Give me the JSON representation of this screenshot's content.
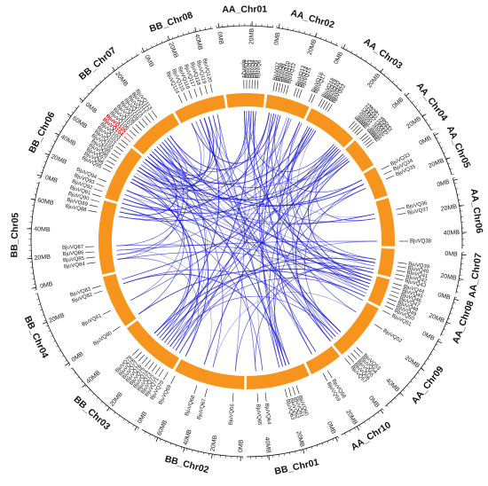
{
  "colors": {
    "chromosome": "#f7941d",
    "link": "#1414d2",
    "axis": "#111111",
    "highlight": "#e00000"
  },
  "chromosomes": [
    {
      "name": "AA_Chr01",
      "start": -8.0,
      "end": 7.0,
      "ticks": [
        "0MB",
        "20MB"
      ]
    },
    {
      "name": "AA_Chr02",
      "start": 8.0,
      "end": 25.0,
      "ticks": [
        "0MB",
        "20MB"
      ]
    },
    {
      "name": "AA_Chr03",
      "start": 26.0,
      "end": 46.0,
      "ticks": [
        "0MB",
        "20MB"
      ]
    },
    {
      "name": "AA_Chr04",
      "start": 47.0,
      "end": 59.0,
      "ticks": [
        "0MB",
        "20MB"
      ]
    },
    {
      "name": "AA_Chr05",
      "start": 60.0,
      "end": 72.0,
      "ticks": [
        "0MB",
        "20MB"
      ]
    },
    {
      "name": "AA_Chr06",
      "start": 73.0,
      "end": 92.0,
      "ticks": [
        "0MB",
        "20MB",
        "40MB"
      ]
    },
    {
      "name": "AA_Chr07",
      "start": 93.0,
      "end": 104.0,
      "ticks": [
        "0MB",
        "20MB"
      ]
    },
    {
      "name": "AA_Chr08",
      "start": 105.0,
      "end": 116.0,
      "ticks": [
        "0MB",
        "20MB"
      ]
    },
    {
      "name": "AA_Chr09",
      "start": 117.0,
      "end": 140.0,
      "ticks": [
        "0MB",
        "20MB",
        "40MB"
      ]
    },
    {
      "name": "AA_Chr10",
      "start": 141.0,
      "end": 154.0,
      "ticks": [
        "0MB",
        "20MB"
      ]
    },
    {
      "name": "BB_Chr01",
      "start": 155.0,
      "end": 180.0,
      "ticks": [
        "0MB",
        "20MB",
        "40MB"
      ]
    },
    {
      "name": "BB_Chr02",
      "start": 181.0,
      "end": 209.0,
      "ticks": [
        "0MB",
        "20MB",
        "40MB",
        "60MB"
      ]
    },
    {
      "name": "BB_Chr03",
      "start": 210.0,
      "end": 234.0,
      "ticks": [
        "0MB",
        "20MB",
        "40MB"
      ]
    },
    {
      "name": "BB_Chr04",
      "start": 235.0,
      "end": 256.0,
      "ticks": [
        "0MB",
        "20MB"
      ]
    },
    {
      "name": "BB_Chr05",
      "start": 257.0,
      "end": 286.0,
      "ticks": [
        "0MB",
        "20MB",
        "40MB",
        "60MB"
      ]
    },
    {
      "name": "BB_Chr06",
      "start": 287.0,
      "end": 309.0,
      "ticks": [
        "0MB",
        "20MB",
        "40MB",
        "60MB"
      ]
    },
    {
      "name": "BB_Chr07",
      "start": 310.0,
      "end": 330.0,
      "ticks": [
        "0MB",
        "20MB"
      ]
    },
    {
      "name": "BB_Chr08",
      "start": 331.0,
      "end": 351.0,
      "ticks": [
        "0MB",
        "20MB",
        "40MB"
      ]
    }
  ],
  "genes": [
    {
      "id": "BjuVQ1",
      "angle": -1.0
    },
    {
      "id": "BjuVQ2",
      "angle": 0.0
    },
    {
      "id": "BjuVQ3",
      "angle": 1.0
    },
    {
      "id": "BjuVQ4",
      "angle": 2.0
    },
    {
      "id": "BjuVQ5",
      "angle": 3.0
    },
    {
      "id": "BjuVQ6",
      "angle": 4.0
    },
    {
      "id": "BjuVQ7",
      "angle": 10.0
    },
    {
      "id": "BjuVQ8",
      "angle": 11.0
    },
    {
      "id": "BjuVQ9",
      "angle": 12.0
    },
    {
      "id": "BjuVQ10",
      "angle": 13.0
    },
    {
      "id": "BjuVQ11",
      "angle": 14.0
    },
    {
      "id": "BjuVQ12",
      "angle": 15.0
    },
    {
      "id": "BjuVQ13",
      "angle": 18.0
    },
    {
      "id": "BjuVQ14",
      "angle": 19.0
    },
    {
      "id": "BjuVQ15",
      "angle": 20.0
    },
    {
      "id": "BjuVQ16",
      "angle": 24.0
    },
    {
      "id": "BjuVQ17",
      "angle": 25.0
    },
    {
      "id": "BjuVQ18",
      "angle": 28.0
    },
    {
      "id": "BjuVQ19",
      "angle": 29.0
    },
    {
      "id": "BjuVQ20",
      "angle": 30.0
    },
    {
      "id": "BjuVQ21",
      "angle": 31.0
    },
    {
      "id": "BjuVQ22",
      "angle": 32.0
    },
    {
      "id": "BjuVQ23",
      "angle": 42.0
    },
    {
      "id": "BjuVQ24",
      "angle": 43.0
    },
    {
      "id": "BjuVQ25",
      "angle": 44.0
    },
    {
      "id": "BjuVQ26",
      "angle": 45.0
    },
    {
      "id": "BjuVQ27",
      "angle": 46.0
    },
    {
      "id": "BjuVQ28",
      "angle": 48.0
    },
    {
      "id": "BjuVQ29",
      "angle": 49.0
    },
    {
      "id": "BjuVQ30",
      "angle": 50.0
    },
    {
      "id": "BjuVQ31",
      "angle": 51.0
    },
    {
      "id": "BjuVQ32",
      "angle": 52.0
    },
    {
      "id": "BjuVQ33",
      "angle": 62.0
    },
    {
      "id": "BjuVQ34",
      "angle": 64.0
    },
    {
      "id": "BjuVQ35",
      "angle": 66.0
    },
    {
      "id": "BjuVQ36",
      "angle": 78.0
    },
    {
      "id": "BjuVQ37",
      "angle": 80.0
    },
    {
      "id": "BjuVQ38",
      "angle": 90.0
    },
    {
      "id": "BjuVQ39",
      "angle": 98.0
    },
    {
      "id": "BjuVQ40",
      "angle": 99.5
    },
    {
      "id": "BjuVQ41",
      "angle": 101.0
    },
    {
      "id": "BjuVQ42",
      "angle": 102.5
    },
    {
      "id": "BjuVQ43",
      "angle": 104.0
    },
    {
      "id": "BjuVQ44",
      "angle": 106.0
    },
    {
      "id": "BjuVQ45",
      "angle": 107.5
    },
    {
      "id": "BjuVQ46",
      "angle": 109.0
    },
    {
      "id": "BjuVQ47",
      "angle": 110.5
    },
    {
      "id": "BjuVQ48",
      "angle": 112.0
    },
    {
      "id": "BjuVQ49",
      "angle": 113.5
    },
    {
      "id": "BjuVQ50",
      "angle": 115.0
    },
    {
      "id": "BjuVQ51",
      "angle": 117.0
    },
    {
      "id": "BjuVQ52",
      "angle": 123.0
    },
    {
      "id": "BjuVQ53",
      "angle": 134.0
    },
    {
      "id": "BjuVQ54",
      "angle": 135.5
    },
    {
      "id": "BjuVQ55",
      "angle": 137.0
    },
    {
      "id": "BjuVQ56",
      "angle": 138.5
    },
    {
      "id": "BjuVQ57",
      "angle": 140.0
    },
    {
      "id": "BjuVQ58",
      "angle": 148.0
    },
    {
      "id": "BjuVQ59",
      "angle": 150.0
    },
    {
      "id": "BjuVQ60",
      "angle": 161.0
    },
    {
      "id": "BjuVQ61",
      "angle": 162.5
    },
    {
      "id": "BjuVQ62",
      "angle": 164.0
    },
    {
      "id": "BjuVQ63",
      "angle": 165.5
    },
    {
      "id": "BjuVQ64",
      "angle": 173.0
    },
    {
      "id": "BjuVQ65",
      "angle": 176.0
    },
    {
      "id": "BjuVQ66",
      "angle": 185.0
    },
    {
      "id": "BjuVQ67",
      "angle": 195.0
    },
    {
      "id": "BjuVQ68",
      "angle": 199.0
    },
    {
      "id": "BjuVQ69",
      "angle": 208.0
    },
    {
      "id": "BjuVQ70",
      "angle": 211.0
    },
    {
      "id": "BjuVQ71",
      "angle": 213.0
    },
    {
      "id": "BjuVQ72",
      "angle": 214.5
    },
    {
      "id": "BjuVQ73",
      "angle": 216.0
    },
    {
      "id": "BjuVQ74",
      "angle": 217.5
    },
    {
      "id": "BjuVQ75",
      "angle": 219.0
    },
    {
      "id": "BjuVQ76",
      "angle": 220.5
    },
    {
      "id": "BjuVQ77",
      "angle": 222.0
    },
    {
      "id": "BjuVQ78",
      "angle": 223.5
    },
    {
      "id": "BjuVQ79",
      "angle": 225.0
    },
    {
      "id": "BjuVQ80",
      "angle": 236.0
    },
    {
      "id": "BjuVQ81",
      "angle": 243.0
    },
    {
      "id": "BjuVQ82",
      "angle": 251.0
    },
    {
      "id": "BjuVQ83",
      "angle": 253.0
    },
    {
      "id": "BjuVQ84",
      "angle": 262.0
    },
    {
      "id": "BjuVQ85",
      "angle": 264.0
    },
    {
      "id": "BjuVQ86",
      "angle": 266.0
    },
    {
      "id": "BjuVQ87",
      "angle": 268.0
    },
    {
      "id": "BjuVQ88",
      "angle": 281.0
    },
    {
      "id": "BjuVQ89",
      "angle": 283.0
    },
    {
      "id": "BjuVQ90",
      "angle": 285.0
    },
    {
      "id": "BjuVQ91",
      "angle": 287.0
    },
    {
      "id": "BjuVQ92",
      "angle": 289.0
    },
    {
      "id": "BjuVQ93",
      "angle": 291.0
    },
    {
      "id": "BjuVQ94",
      "angle": 293.0
    },
    {
      "id": "BjuVQ95",
      "angle": 297.0
    },
    {
      "id": "BjuVQ96",
      "angle": 298.5
    },
    {
      "id": "BjuVQ97",
      "angle": 300.0
    },
    {
      "id": "BjuVQ98",
      "angle": 301.5
    },
    {
      "id": "BjuVQ99",
      "angle": 303.0
    },
    {
      "id": "BjuVQ100",
      "angle": 304.5
    },
    {
      "id": "BjuVQ101",
      "angle": 306.0
    },
    {
      "id": "BjuVQ102",
      "angle": 307.5
    },
    {
      "id": "BjuVQ103",
      "angle": 309.0
    },
    {
      "id": "BjuVQ104",
      "angle": 310.5,
      "highlight": true
    },
    {
      "id": "BjuVQ105",
      "angle": 312.0,
      "highlight": true
    },
    {
      "id": "BjuVQ106",
      "angle": 313.5
    },
    {
      "id": "BjuVQ107",
      "angle": 315.0
    },
    {
      "id": "BjuVQ108",
      "angle": 316.5
    },
    {
      "id": "BjuVQ109",
      "angle": 318.0
    },
    {
      "id": "BjuVQ110",
      "angle": 319.5
    },
    {
      "id": "BjuVQ111",
      "angle": 321.0
    },
    {
      "id": "BjuVQ112",
      "angle": 322.5
    },
    {
      "id": "BjuVQ113",
      "angle": 324.0
    },
    {
      "id": "BjuVQ114",
      "angle": 335.0
    },
    {
      "id": "BjuVQ115",
      "angle": 337.0
    },
    {
      "id": "BjuVQ116",
      "angle": 339.0
    },
    {
      "id": "BjuVQ117",
      "angle": 341.0
    },
    {
      "id": "BjuVQ118",
      "angle": 343.0
    },
    {
      "id": "BjuVQ119",
      "angle": 345.0
    },
    {
      "id": "BjuVQ120",
      "angle": 347.0
    }
  ],
  "links": [
    [
      1,
      66
    ],
    [
      2,
      88
    ],
    [
      3,
      100
    ],
    [
      4,
      75
    ],
    [
      5,
      31
    ],
    [
      6,
      110
    ],
    [
      7,
      91
    ],
    [
      8,
      60
    ],
    [
      9,
      70
    ],
    [
      10,
      114
    ],
    [
      11,
      47
    ],
    [
      12,
      99
    ],
    [
      13,
      85
    ],
    [
      14,
      62
    ],
    [
      15,
      105
    ],
    [
      16,
      73
    ],
    [
      17,
      93
    ],
    [
      18,
      52
    ],
    [
      19,
      107
    ],
    [
      20,
      81
    ],
    [
      21,
      64
    ],
    [
      22,
      96
    ],
    [
      23,
      77
    ],
    [
      24,
      111
    ],
    [
      25,
      56
    ],
    [
      26,
      89
    ],
    [
      27,
      101
    ],
    [
      28,
      68
    ],
    [
      29,
      117
    ],
    [
      30,
      83
    ],
    [
      31,
      103
    ],
    [
      32,
      71
    ],
    [
      33,
      95
    ],
    [
      34,
      109
    ],
    [
      35,
      78
    ],
    [
      36,
      97
    ],
    [
      37,
      115
    ],
    [
      38,
      86
    ],
    [
      39,
      104
    ],
    [
      40,
      76
    ],
    [
      41,
      106
    ],
    [
      42,
      65
    ],
    [
      43,
      112
    ],
    [
      44,
      87
    ],
    [
      45,
      98
    ],
    [
      46,
      79
    ],
    [
      47,
      119
    ],
    [
      48,
      92
    ],
    [
      49,
      102
    ],
    [
      50,
      72
    ],
    [
      51,
      108
    ],
    [
      53,
      94
    ],
    [
      54,
      113
    ],
    [
      55,
      82
    ],
    [
      57,
      116
    ],
    [
      58,
      90
    ],
    [
      59,
      118
    ],
    [
      61,
      100
    ],
    [
      63,
      120
    ],
    [
      67,
      105
    ],
    [
      69,
      84
    ],
    [
      74,
      110
    ],
    [
      80,
      99
    ],
    [
      1,
      40
    ],
    [
      2,
      51
    ],
    [
      3,
      23
    ],
    [
      5,
      44
    ],
    [
      6,
      58
    ],
    [
      8,
      36
    ],
    [
      9,
      53
    ],
    [
      11,
      33
    ],
    [
      12,
      61
    ],
    [
      14,
      48
    ],
    [
      16,
      39
    ],
    [
      18,
      46
    ],
    [
      20,
      59
    ],
    [
      22,
      41
    ],
    [
      24,
      63
    ],
    [
      26,
      45
    ],
    [
      27,
      37
    ],
    [
      30,
      49
    ],
    [
      32,
      57
    ],
    [
      34,
      54
    ],
    [
      35,
      62
    ],
    [
      38,
      70
    ],
    [
      42,
      74
    ],
    [
      43,
      66
    ],
    [
      50,
      80
    ],
    [
      52,
      67
    ],
    [
      55,
      73
    ],
    [
      60,
      82
    ],
    [
      64,
      90
    ],
    [
      68,
      86
    ],
    [
      71,
      95
    ],
    [
      76,
      93
    ],
    [
      78,
      96
    ],
    [
      81,
      102
    ],
    [
      84,
      104
    ],
    [
      87,
      109
    ],
    [
      89,
      106
    ],
    [
      91,
      111
    ],
    [
      94,
      114
    ],
    [
      97,
      117
    ],
    [
      99,
      120
    ],
    [
      101,
      115
    ],
    [
      103,
      118
    ],
    [
      105,
      119
    ],
    [
      107,
      112
    ],
    [
      17,
      55
    ],
    [
      19,
      70
    ],
    [
      21,
      88
    ],
    [
      25,
      92
    ],
    [
      28,
      83
    ],
    [
      29,
      61
    ],
    [
      33,
      105
    ],
    [
      36,
      100
    ],
    [
      39,
      113
    ],
    [
      45,
      95
    ],
    [
      47,
      84
    ],
    [
      53,
      107
    ],
    [
      56,
      118
    ],
    [
      62,
      116
    ],
    [
      65,
      108
    ],
    [
      69,
      103
    ],
    [
      72,
      110
    ],
    [
      77,
      96
    ],
    [
      79,
      117
    ],
    [
      85,
      111
    ],
    [
      4,
      97
    ],
    [
      7,
      113
    ]
  ]
}
